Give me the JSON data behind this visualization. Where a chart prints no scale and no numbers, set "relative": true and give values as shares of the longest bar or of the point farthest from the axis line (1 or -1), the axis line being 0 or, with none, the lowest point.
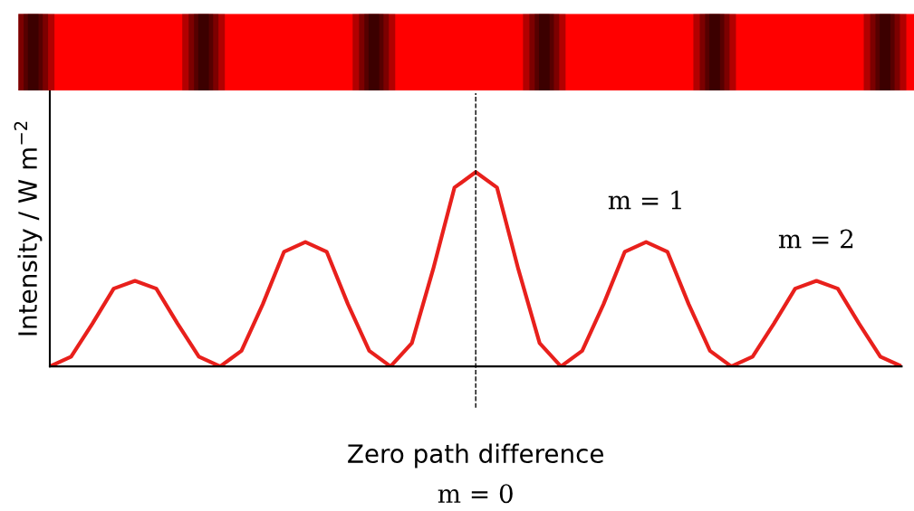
{
  "chart_data": {
    "type": "line",
    "relative": true,
    "xlabel": "Zero path difference",
    "ylabel": "Intensity / W m$^{−2}$",
    "categories": [
      null,
      null,
      null,
      null,
      null,
      null,
      null,
      null,
      null,
      null,
      null,
      null,
      null,
      null,
      null,
      null,
      null,
      null,
      null,
      null,
      null,
      null,
      null,
      null,
      null,
      null,
      null,
      null,
      null,
      null,
      null,
      null,
      null,
      null,
      null,
      null,
      null,
      null,
      null,
      null,
      null
    ],
    "series": [
      {
        "color": "#e8201c",
        "values": [
          0,
          0.05,
          0.22,
          0.4,
          0.44,
          0.4,
          0.22,
          0.05,
          0,
          0.08,
          0.32,
          0.59,
          0.64,
          0.59,
          0.32,
          0.08,
          0,
          0.12,
          0.5,
          0.92,
          1,
          0.92,
          0.5,
          0.12,
          0,
          0.08,
          0.32,
          0.59,
          0.64,
          0.59,
          0.32,
          0.08,
          0,
          0.05,
          0.22,
          0.4,
          0.44,
          0.4,
          0.22,
          0.05,
          0
        ]
      }
    ],
    "annotations": [
      "m = 0",
      "m = 1",
      "m = 2"
    ],
    "grid": false,
    "marker": "none",
    "line_style": "solid"
  }
}
